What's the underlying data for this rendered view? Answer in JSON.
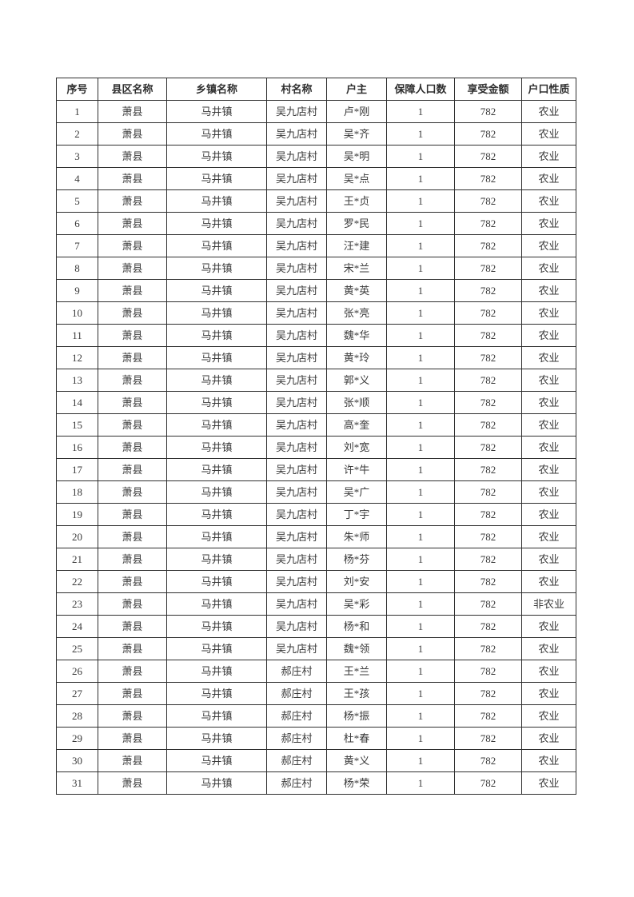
{
  "page": {
    "background_color": "#ffffff",
    "text_color": "#3a3a3a",
    "border_color": "#2f2f2f"
  },
  "table": {
    "headers": [
      "序号",
      "县区名称",
      "乡镇名称",
      "村名称",
      "户主",
      "保障人口数",
      "享受金额",
      "户口性质"
    ],
    "rows": [
      [
        "1",
        "萧县",
        "马井镇",
        "吴九店村",
        "卢*刚",
        "1",
        "782",
        "农业"
      ],
      [
        "2",
        "萧县",
        "马井镇",
        "吴九店村",
        "吴*齐",
        "1",
        "782",
        "农业"
      ],
      [
        "3",
        "萧县",
        "马井镇",
        "吴九店村",
        "吴*明",
        "1",
        "782",
        "农业"
      ],
      [
        "4",
        "萧县",
        "马井镇",
        "吴九店村",
        "吴*点",
        "1",
        "782",
        "农业"
      ],
      [
        "5",
        "萧县",
        "马井镇",
        "吴九店村",
        "王*贞",
        "1",
        "782",
        "农业"
      ],
      [
        "6",
        "萧县",
        "马井镇",
        "吴九店村",
        "罗*民",
        "1",
        "782",
        "农业"
      ],
      [
        "7",
        "萧县",
        "马井镇",
        "吴九店村",
        "汪*建",
        "1",
        "782",
        "农业"
      ],
      [
        "8",
        "萧县",
        "马井镇",
        "吴九店村",
        "宋*兰",
        "1",
        "782",
        "农业"
      ],
      [
        "9",
        "萧县",
        "马井镇",
        "吴九店村",
        "黄*英",
        "1",
        "782",
        "农业"
      ],
      [
        "10",
        "萧县",
        "马井镇",
        "吴九店村",
        "张*亮",
        "1",
        "782",
        "农业"
      ],
      [
        "11",
        "萧县",
        "马井镇",
        "吴九店村",
        "魏*华",
        "1",
        "782",
        "农业"
      ],
      [
        "12",
        "萧县",
        "马井镇",
        "吴九店村",
        "黄*玲",
        "1",
        "782",
        "农业"
      ],
      [
        "13",
        "萧县",
        "马井镇",
        "吴九店村",
        "郭*义",
        "1",
        "782",
        "农业"
      ],
      [
        "14",
        "萧县",
        "马井镇",
        "吴九店村",
        "张*顺",
        "1",
        "782",
        "农业"
      ],
      [
        "15",
        "萧县",
        "马井镇",
        "吴九店村",
        "高*奎",
        "1",
        "782",
        "农业"
      ],
      [
        "16",
        "萧县",
        "马井镇",
        "吴九店村",
        "刘*宽",
        "1",
        "782",
        "农业"
      ],
      [
        "17",
        "萧县",
        "马井镇",
        "吴九店村",
        "许*牛",
        "1",
        "782",
        "农业"
      ],
      [
        "18",
        "萧县",
        "马井镇",
        "吴九店村",
        "吴*广",
        "1",
        "782",
        "农业"
      ],
      [
        "19",
        "萧县",
        "马井镇",
        "吴九店村",
        "丁*宇",
        "1",
        "782",
        "农业"
      ],
      [
        "20",
        "萧县",
        "马井镇",
        "吴九店村",
        "朱*师",
        "1",
        "782",
        "农业"
      ],
      [
        "21",
        "萧县",
        "马井镇",
        "吴九店村",
        "杨*芬",
        "1",
        "782",
        "农业"
      ],
      [
        "22",
        "萧县",
        "马井镇",
        "吴九店村",
        "刘*安",
        "1",
        "782",
        "农业"
      ],
      [
        "23",
        "萧县",
        "马井镇",
        "吴九店村",
        "吴*彩",
        "1",
        "782",
        "非农业"
      ],
      [
        "24",
        "萧县",
        "马井镇",
        "吴九店村",
        "杨*和",
        "1",
        "782",
        "农业"
      ],
      [
        "25",
        "萧县",
        "马井镇",
        "吴九店村",
        "魏*领",
        "1",
        "782",
        "农业"
      ],
      [
        "26",
        "萧县",
        "马井镇",
        "郝庄村",
        "王*兰",
        "1",
        "782",
        "农业"
      ],
      [
        "27",
        "萧县",
        "马井镇",
        "郝庄村",
        "王*孩",
        "1",
        "782",
        "农业"
      ],
      [
        "28",
        "萧县",
        "马井镇",
        "郝庄村",
        "杨*振",
        "1",
        "782",
        "农业"
      ],
      [
        "29",
        "萧县",
        "马井镇",
        "郝庄村",
        "杜*春",
        "1",
        "782",
        "农业"
      ],
      [
        "30",
        "萧县",
        "马井镇",
        "郝庄村",
        "黄*义",
        "1",
        "782",
        "农业"
      ],
      [
        "31",
        "萧县",
        "马井镇",
        "郝庄村",
        "杨*荣",
        "1",
        "782",
        "农业"
      ]
    ]
  }
}
